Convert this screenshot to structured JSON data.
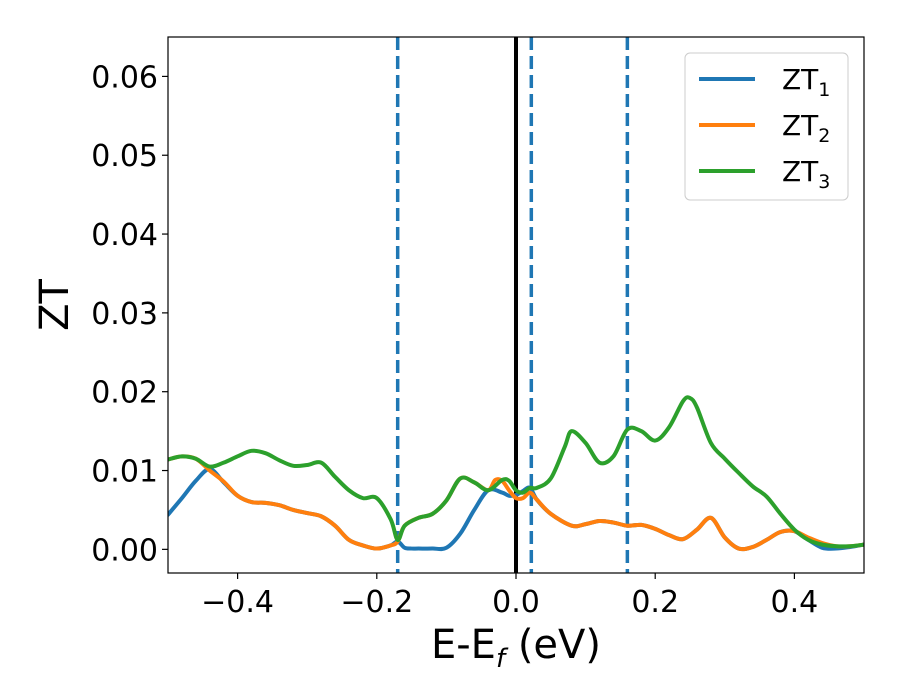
{
  "chart_data": {
    "type": "line",
    "title": "",
    "xlabel": "E-E_f (eV)",
    "xlabel_parts": {
      "main": "E-E",
      "sub": "f",
      "tail": " (eV)"
    },
    "ylabel": "ZT",
    "xlim": [
      -0.5,
      0.5
    ],
    "ylim": [
      -0.003,
      0.065
    ],
    "xticks": [
      -0.4,
      -0.2,
      0.0,
      0.2,
      0.4
    ],
    "xtick_labels": [
      "−0.4",
      "−0.2",
      "0.0",
      "0.2",
      "0.4"
    ],
    "yticks": [
      0.0,
      0.01,
      0.02,
      0.03,
      0.04,
      0.05,
      0.06
    ],
    "ytick_labels": [
      "0.00",
      "0.01",
      "0.02",
      "0.03",
      "0.04",
      "0.05",
      "0.06"
    ],
    "grid": false,
    "legend_position": "top-right",
    "colors": {
      "ZT1": "#1f77b4",
      "ZT2": "#ff7f0e",
      "ZT3": "#2ca02c",
      "fermi": "#000000",
      "dashed": "#1f77b4"
    },
    "vertical_lines": [
      {
        "x": 0.0,
        "style": "solid",
        "color": "#000000"
      },
      {
        "x": -0.17,
        "style": "dashed",
        "color": "#1f77b4"
      },
      {
        "x": 0.022,
        "style": "dashed",
        "color": "#1f77b4"
      },
      {
        "x": 0.16,
        "style": "dashed",
        "color": "#1f77b4"
      }
    ],
    "series": [
      {
        "name": "ZT1",
        "legend_main": "ZT",
        "legend_sub": "1",
        "color": "#1f77b4",
        "x": [
          -0.5,
          -0.48,
          -0.46,
          -0.44,
          -0.42,
          -0.4,
          -0.38,
          -0.36,
          -0.34,
          -0.32,
          -0.3,
          -0.28,
          -0.26,
          -0.24,
          -0.22,
          -0.2,
          -0.18,
          -0.17,
          -0.16,
          -0.15,
          -0.14,
          -0.12,
          -0.1,
          -0.08,
          -0.06,
          -0.04,
          -0.02,
          -0.01,
          0.0,
          0.01,
          0.02,
          0.03,
          0.05,
          0.08,
          0.1,
          0.12,
          0.14,
          0.16,
          0.18,
          0.2,
          0.22,
          0.24,
          0.26,
          0.28,
          0.3,
          0.32,
          0.34,
          0.36,
          0.38,
          0.4,
          0.42,
          0.44,
          0.46,
          0.48,
          0.5
        ],
        "y": [
          0.0044,
          0.0065,
          0.0087,
          0.0102,
          0.0085,
          0.0068,
          0.006,
          0.0059,
          0.0056,
          0.005,
          0.0046,
          0.0042,
          0.003,
          0.0012,
          0.0005,
          0.0001,
          0.0005,
          0.001,
          0.0002,
          0.0001,
          0.0001,
          0.0001,
          0.0002,
          0.002,
          0.005,
          0.0075,
          0.0072,
          0.0068,
          0.0069,
          0.0074,
          0.0078,
          0.0063,
          0.0045,
          0.003,
          0.0032,
          0.0036,
          0.0034,
          0.003,
          0.0031,
          0.0026,
          0.0018,
          0.0013,
          0.0025,
          0.004,
          0.0015,
          0.0001,
          0.0003,
          0.0012,
          0.0022,
          0.0023,
          0.0012,
          0.0002,
          0.0001,
          0.0003,
          0.0006
        ]
      },
      {
        "name": "ZT2",
        "legend_main": "ZT",
        "legend_sub": "2",
        "color": "#ff7f0e",
        "x": [
          -0.5,
          -0.48,
          -0.46,
          -0.44,
          -0.42,
          -0.4,
          -0.38,
          -0.36,
          -0.34,
          -0.32,
          -0.3,
          -0.28,
          -0.26,
          -0.24,
          -0.22,
          -0.2,
          -0.18,
          -0.17,
          -0.16,
          -0.14,
          -0.12,
          -0.1,
          -0.08,
          -0.06,
          -0.04,
          -0.03,
          -0.02,
          -0.01,
          0.0,
          0.01,
          0.02,
          0.03,
          0.05,
          0.08,
          0.1,
          0.12,
          0.14,
          0.16,
          0.18,
          0.2,
          0.22,
          0.24,
          0.26,
          0.28,
          0.3,
          0.32,
          0.34,
          0.36,
          0.38,
          0.4,
          0.42,
          0.44,
          0.46,
          0.48,
          0.5
        ],
        "y": [
          0.0114,
          0.0118,
          0.0115,
          0.01,
          0.0086,
          0.0068,
          0.006,
          0.0059,
          0.0056,
          0.005,
          0.0046,
          0.0042,
          0.003,
          0.0012,
          0.0005,
          0.0001,
          0.0005,
          0.001,
          0.003,
          0.004,
          0.0045,
          0.0062,
          0.009,
          0.0085,
          0.0075,
          0.0088,
          0.0087,
          0.0075,
          0.0065,
          0.0065,
          0.0072,
          0.0063,
          0.0045,
          0.003,
          0.0032,
          0.0036,
          0.0034,
          0.003,
          0.0031,
          0.0026,
          0.0018,
          0.0013,
          0.0025,
          0.004,
          0.0015,
          0.0001,
          0.0003,
          0.0012,
          0.0022,
          0.0023,
          0.0015,
          0.0008,
          0.0004,
          0.0004,
          0.0006
        ]
      },
      {
        "name": "ZT3",
        "legend_main": "ZT",
        "legend_sub": "3",
        "color": "#2ca02c",
        "x": [
          -0.5,
          -0.48,
          -0.46,
          -0.44,
          -0.42,
          -0.4,
          -0.38,
          -0.36,
          -0.34,
          -0.32,
          -0.3,
          -0.28,
          -0.26,
          -0.24,
          -0.22,
          -0.2,
          -0.18,
          -0.17,
          -0.16,
          -0.14,
          -0.12,
          -0.1,
          -0.08,
          -0.06,
          -0.04,
          -0.02,
          -0.01,
          0.0,
          0.01,
          0.02,
          0.03,
          0.05,
          0.07,
          0.08,
          0.1,
          0.12,
          0.14,
          0.16,
          0.18,
          0.2,
          0.22,
          0.24,
          0.25,
          0.26,
          0.28,
          0.3,
          0.32,
          0.34,
          0.36,
          0.38,
          0.4,
          0.42,
          0.44,
          0.46,
          0.48,
          0.5
        ],
        "y": [
          0.0114,
          0.0118,
          0.0115,
          0.0105,
          0.011,
          0.0118,
          0.0125,
          0.0122,
          0.0113,
          0.0106,
          0.0107,
          0.011,
          0.0092,
          0.0075,
          0.0065,
          0.0065,
          0.0038,
          0.0012,
          0.003,
          0.004,
          0.0045,
          0.0062,
          0.009,
          0.0085,
          0.0075,
          0.0088,
          0.0087,
          0.0075,
          0.0072,
          0.0078,
          0.0078,
          0.009,
          0.013,
          0.015,
          0.0135,
          0.011,
          0.0118,
          0.0152,
          0.015,
          0.0138,
          0.0155,
          0.0188,
          0.0192,
          0.018,
          0.0135,
          0.0115,
          0.0097,
          0.008,
          0.0067,
          0.0045,
          0.0025,
          0.0012,
          0.0006,
          0.0004,
          0.0004,
          0.0006
        ]
      }
    ]
  }
}
